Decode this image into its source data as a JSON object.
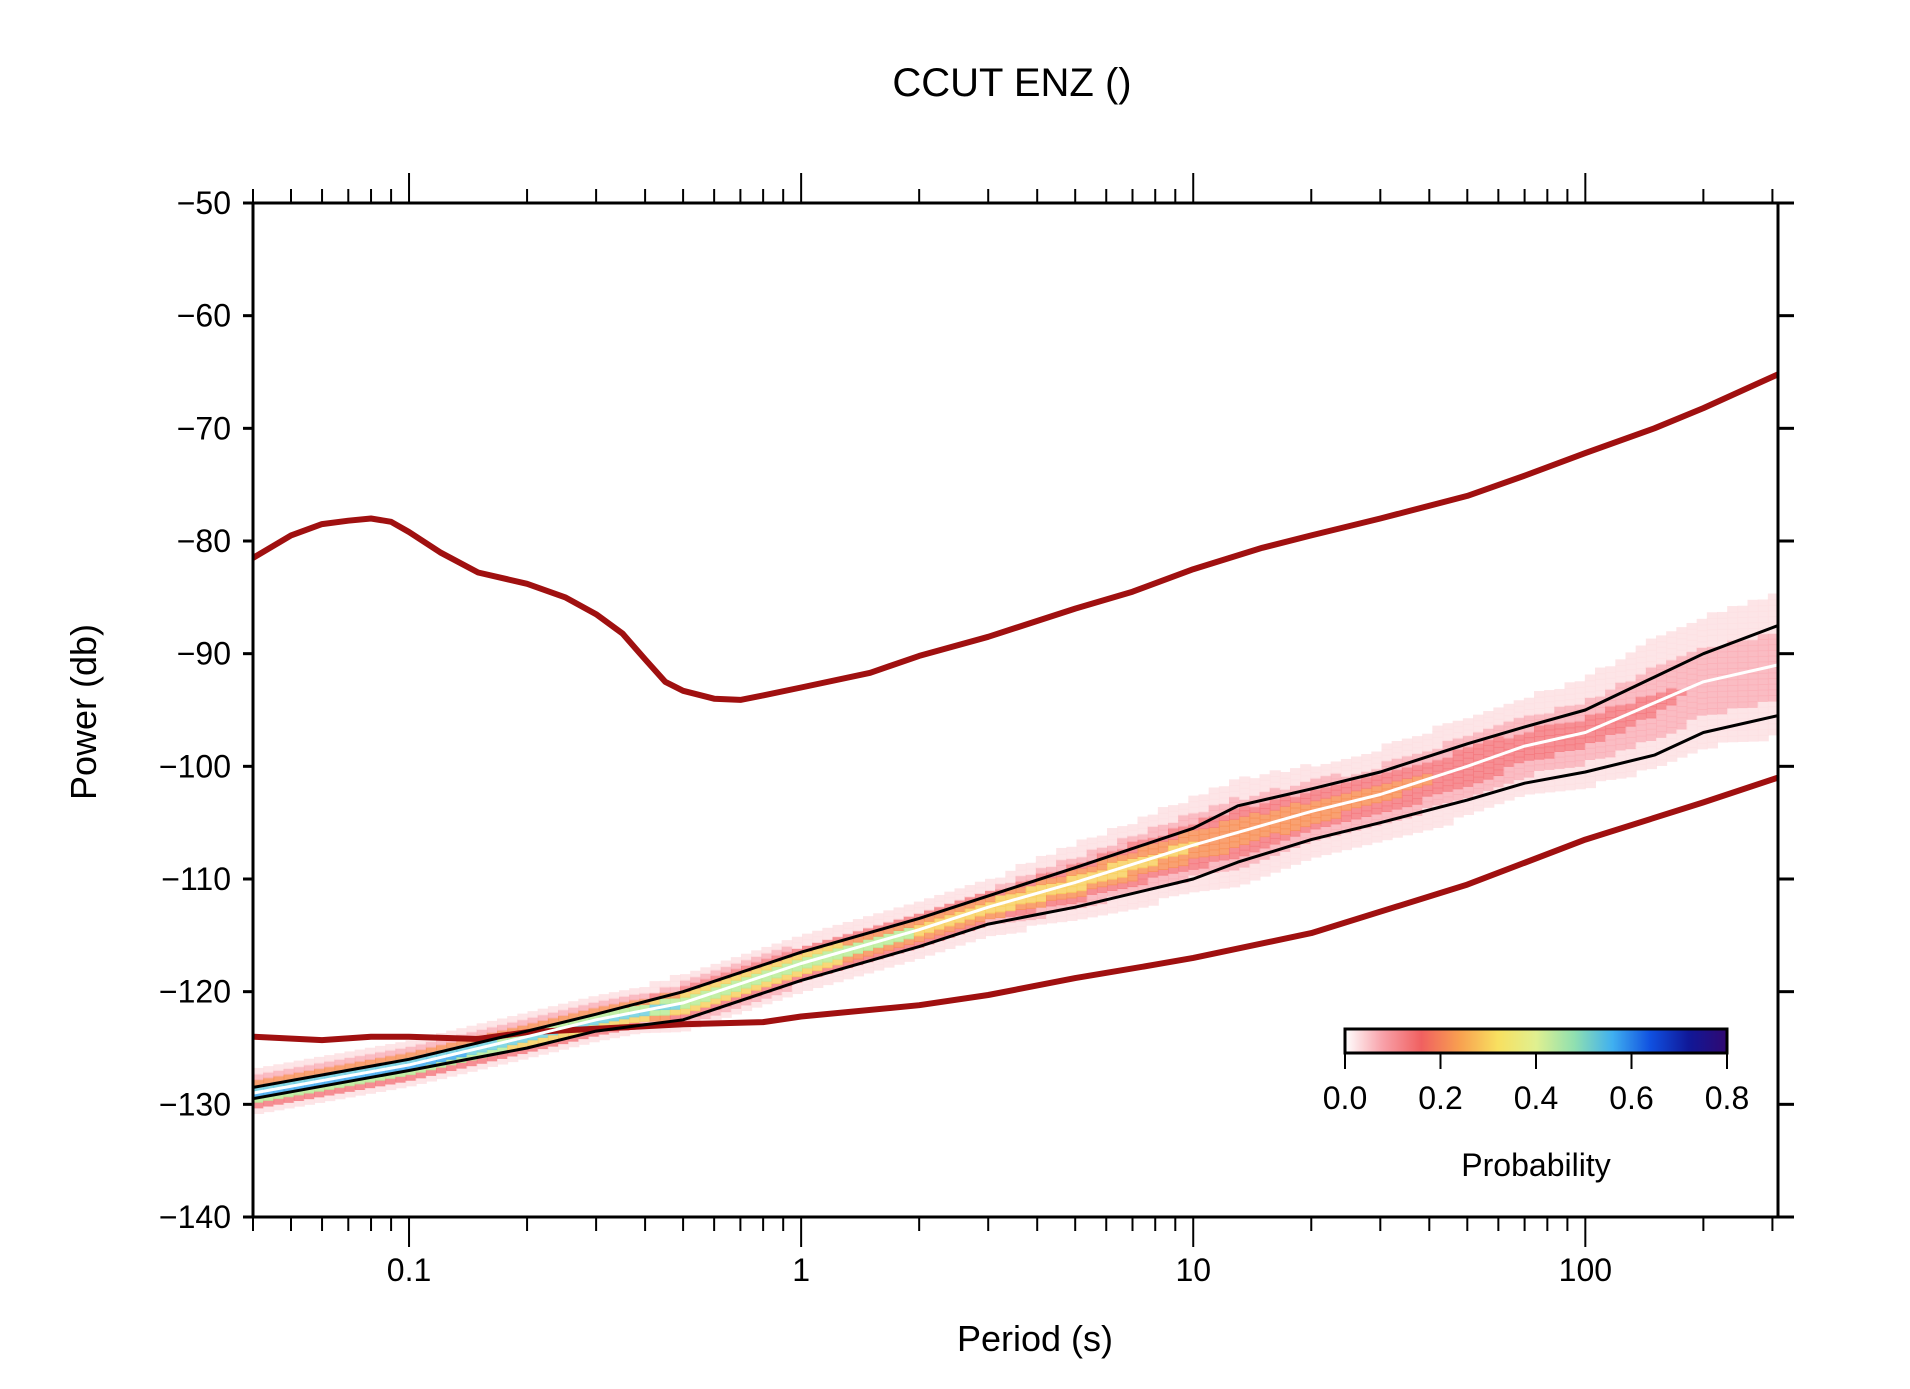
{
  "chart_data": {
    "type": "line",
    "title": "CCUT ENZ ()",
    "xlabel": "Period (s)",
    "ylabel": "Power (db)",
    "x_scale": "log",
    "xlim": [
      0.04,
      310
    ],
    "ylim": [
      -140,
      -50
    ],
    "x_ticks": [
      0.1,
      1,
      10,
      100
    ],
    "x_tick_labels": [
      "0.1",
      "1",
      "10",
      "100"
    ],
    "y_ticks": [
      -140,
      -130,
      -120,
      -110,
      -100,
      -90,
      -80,
      -70,
      -60,
      -50
    ],
    "y_tick_labels": [
      "−140",
      "−130",
      "−120",
      "−110",
      "−100",
      "−90",
      "−80",
      "−70",
      "−60",
      "−50"
    ],
    "grid": false,
    "series": [
      {
        "role": "new-high-noise-model",
        "color": "#a01010",
        "x": [
          0.04,
          0.05,
          0.06,
          0.07,
          0.08,
          0.09,
          0.1,
          0.12,
          0.15,
          0.2,
          0.25,
          0.3,
          0.35,
          0.4,
          0.45,
          0.5,
          0.6,
          0.7,
          0.8,
          1,
          1.5,
          2,
          3,
          5,
          7,
          10,
          15,
          20,
          30,
          50,
          70,
          100,
          150,
          200,
          310
        ],
        "y": [
          -81.5,
          -79.5,
          -78.5,
          -78.2,
          -78,
          -78.3,
          -79.2,
          -81,
          -82.8,
          -83.8,
          -85,
          -86.5,
          -88.2,
          -90.5,
          -92.5,
          -93.3,
          -94,
          -94.1,
          -93.7,
          -93,
          -91.7,
          -90.2,
          -88.5,
          -86,
          -84.5,
          -82.5,
          -80.6,
          -79.5,
          -78,
          -76,
          -74.2,
          -72.2,
          -70,
          -68.2,
          -65.2
        ]
      },
      {
        "role": "new-low-noise-model",
        "color": "#a01010",
        "x": [
          0.04,
          0.06,
          0.08,
          0.1,
          0.15,
          0.2,
          0.3,
          0.5,
          0.8,
          1,
          2,
          3,
          5,
          8,
          10,
          20,
          50,
          100,
          200,
          310
        ],
        "y": [
          -124,
          -124.3,
          -124,
          -124,
          -124.2,
          -123.6,
          -123.3,
          -122.9,
          -122.7,
          -122.2,
          -121.2,
          -120.3,
          -118.8,
          -117.6,
          -117,
          -114.8,
          -110.5,
          -106.5,
          -103.2,
          -101
        ]
      },
      {
        "role": "upper-percentile",
        "color": "#000000",
        "x": [
          0.04,
          0.1,
          0.2,
          0.3,
          0.5,
          1,
          2,
          3,
          5,
          10,
          13,
          20,
          30,
          50,
          70,
          100,
          200,
          310
        ],
        "y": [
          -128.5,
          -126,
          -123.5,
          -122,
          -120,
          -116.5,
          -113.5,
          -111.5,
          -109,
          -105.5,
          -103.5,
          -102,
          -100.5,
          -98,
          -96.5,
          -95,
          -90,
          -87.5
        ]
      },
      {
        "role": "median",
        "color": "#ffffff",
        "x": [
          0.04,
          0.1,
          0.2,
          0.3,
          0.5,
          1,
          2,
          3,
          5,
          10,
          20,
          30,
          50,
          70,
          100,
          200,
          310
        ],
        "y": [
          -129,
          -126.5,
          -124,
          -122.5,
          -121,
          -117.5,
          -114.5,
          -112.5,
          -110.3,
          -107,
          -104,
          -102.5,
          -100,
          -98.2,
          -97,
          -92.5,
          -91
        ]
      },
      {
        "role": "lower-percentile",
        "color": "#000000",
        "x": [
          0.04,
          0.1,
          0.2,
          0.3,
          0.5,
          1,
          2,
          3,
          5,
          10,
          13,
          20,
          30,
          50,
          70,
          100,
          150,
          200,
          310
        ],
        "y": [
          -129.5,
          -127,
          -125,
          -123.5,
          -122.5,
          -119,
          -116,
          -114,
          -112.5,
          -110,
          -108.5,
          -106.5,
          -105,
          -103,
          -101.5,
          -100.5,
          -99,
          -97,
          -95.5
        ]
      }
    ],
    "probability_colorbar": {
      "label": "Probability",
      "range": [
        0,
        0.8
      ],
      "ticks": [
        0,
        0.2,
        0.4,
        0.6,
        0.8
      ],
      "tick_labels": [
        "0.0",
        "0.2",
        "0.4",
        "0.6",
        "0.8"
      ],
      "colors": [
        "#ffffff",
        "#f8a0a8",
        "#f06060",
        "#f8a050",
        "#f8e060",
        "#e0f090",
        "#90e0b0",
        "#40b0f0",
        "#1050e0",
        "#101898",
        "#300870"
      ],
      "placement": "lower-right"
    }
  }
}
